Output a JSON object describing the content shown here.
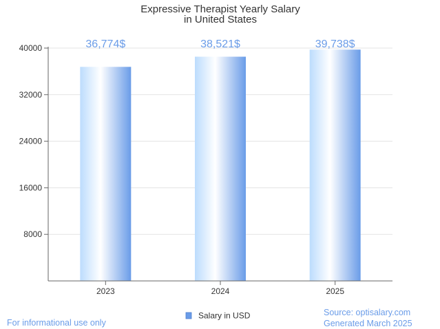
{
  "chart_data": {
    "type": "bar",
    "title": [
      "Expressive Therapist Yearly Salary",
      "in United States"
    ],
    "categories": [
      "2023",
      "2024",
      "2025"
    ],
    "series": [
      {
        "name": "Salary in USD",
        "values": [
          36774,
          38521,
          39738
        ]
      }
    ],
    "data_labels": [
      "36,774$",
      "38,521$",
      "39,738$"
    ],
    "y_ticks": [
      "8000",
      "16000",
      "24000",
      "32000",
      "40000"
    ],
    "ylim": [
      0,
      40000
    ],
    "grid": true,
    "legend_position": "bottom-center",
    "xlabel": "",
    "ylabel": ""
  },
  "colors": {
    "bar_light": "#ffffff",
    "bar_mid": "#bcdcfd",
    "bar_dark": "#6a9ce8",
    "label": "#6a9ce8",
    "grid": "#e3e3e3",
    "axis": "#666666"
  },
  "footer": {
    "note": "For informational use only",
    "source": "Source: optisalary.com",
    "generated": "Generated March 2025"
  }
}
